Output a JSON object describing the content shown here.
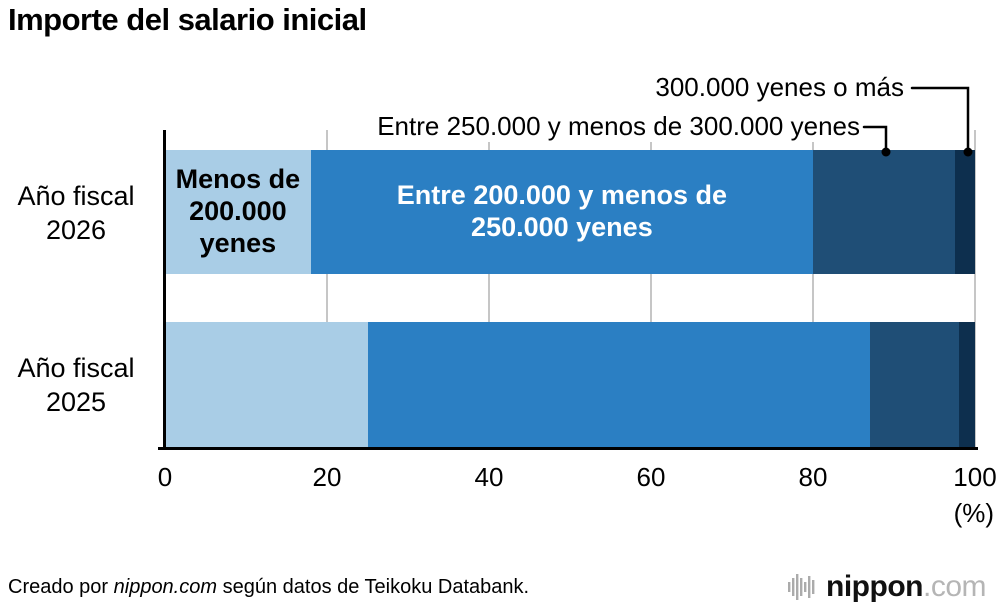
{
  "title": "Importe del salario inicial",
  "annotations": [
    {
      "label": "300.000 yenes o más"
    },
    {
      "label": "Entre 250.000 y menos de 300.000 yenes"
    }
  ],
  "chart_data": {
    "type": "bar",
    "stacked": true,
    "orientation": "horizontal",
    "title": "Importe del salario inicial",
    "categories": [
      "Año fiscal 2026",
      "Año fiscal 2025"
    ],
    "series": [
      {
        "name": "Menos de 200.000 yenes",
        "color": "#a9cde6",
        "values": [
          18,
          25
        ]
      },
      {
        "name": "Entre 200.000 y menos de 250.000 yenes",
        "color": "#2b7fc3",
        "values": [
          62,
          62
        ]
      },
      {
        "name": "Entre 250.000 y menos de 300.000 yenes",
        "color": "#1f4e76",
        "values": [
          17.5,
          11
        ]
      },
      {
        "name": "300.000 yenes o más",
        "color": "#0d2f4e",
        "values": [
          2.5,
          2
        ]
      }
    ],
    "xlim": [
      0,
      100
    ],
    "xticks": [
      "0",
      "20",
      "40",
      "60",
      "80",
      "100"
    ],
    "x_unit": "(%)",
    "grid": true,
    "legend": "none",
    "labeled_segments": [
      [
        0,
        0
      ],
      [
        0,
        1
      ]
    ]
  },
  "footer": {
    "credit_prefix": "Creado por ",
    "credit_source": "nippon.com",
    "credit_suffix": " según datos de Teikoku Databank.",
    "logo_text": "nippon",
    "logo_suffix": ".com"
  }
}
